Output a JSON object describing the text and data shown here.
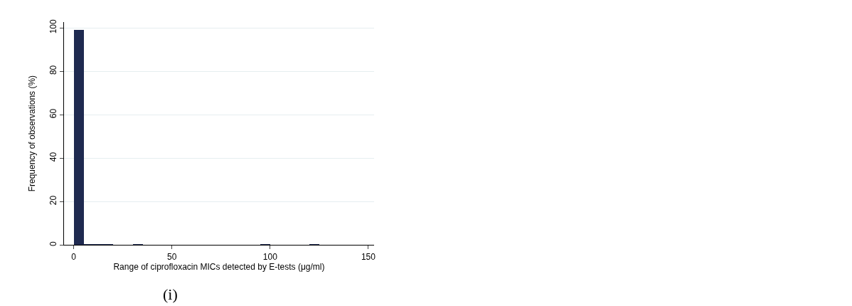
{
  "chart_data": {
    "type": "histogram",
    "xlabel": "Range of ciprofloxacin MICs detected by E-tests (μg/ml)",
    "ylabel": "Frequency of observations (%)",
    "bins": [
      0,
      5,
      10,
      15,
      20,
      25,
      30,
      35,
      40,
      45,
      50,
      55,
      60,
      65,
      70,
      75,
      80,
      85,
      90,
      95,
      100,
      105,
      110,
      115,
      120,
      125
    ],
    "values": [
      99.2,
      0.3,
      0.2,
      0.2,
      0,
      0,
      0.2,
      0,
      0,
      0,
      0,
      0,
      0,
      0,
      0,
      0,
      0,
      0,
      0,
      0.2,
      0,
      0,
      0,
      0,
      0.2
    ],
    "color": "#1f2a50",
    "xlim": [
      -5,
      153
    ],
    "xticks": [
      0,
      50,
      100,
      150
    ],
    "ylim": [
      0,
      102.7
    ],
    "yticks": [
      0,
      20,
      40,
      60,
      80,
      100
    ],
    "grid": "y",
    "annotations": [
      "(i)"
    ]
  }
}
